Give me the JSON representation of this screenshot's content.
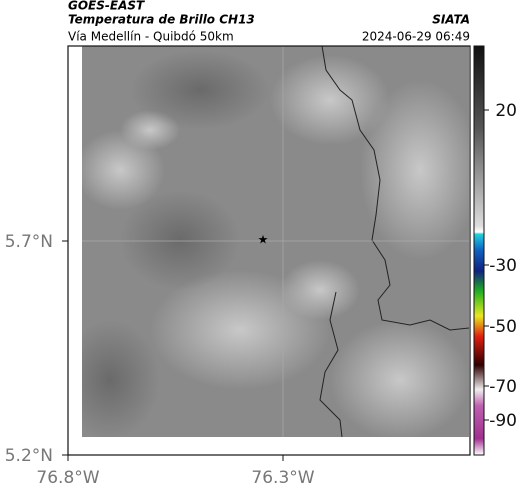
{
  "header": {
    "satellite": "GOES-EAST",
    "product": "Temperatura de Brillo CH13",
    "region": "Vía Medellín - Quibdó 50km",
    "brand": "SIATA",
    "timestamp": "2024-06-29 06:49"
  },
  "map": {
    "lat_labels": [
      "5.7°N",
      "5.2°N"
    ],
    "lon_labels": [
      "76.8°W",
      "76.3°W"
    ]
  },
  "colorbar": {
    "ticks": [
      20,
      -30,
      -50,
      -70,
      -90
    ]
  }
}
